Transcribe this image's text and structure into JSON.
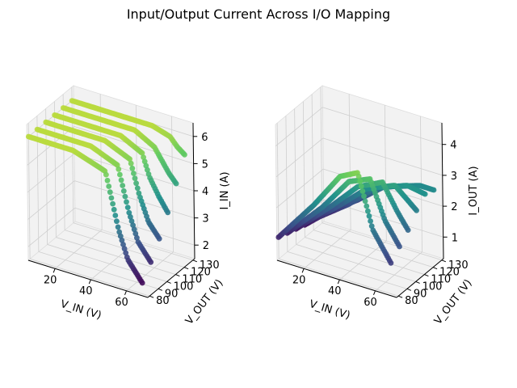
{
  "figure_title": "Input/Output Current Across I/O Mapping",
  "colors": {
    "pane": "#f2f2f2",
    "grid": "#cfcfcf",
    "colormap": [
      "#440154",
      "#3b528b",
      "#21918c",
      "#5ec962",
      "#fde725"
    ]
  },
  "chart_data": [
    {
      "type": "scatter",
      "projection": "3d",
      "grid": true,
      "x": {
        "label": "V_IN (V)",
        "range": [
          5,
          72
        ],
        "ticks": [
          20,
          40,
          60
        ]
      },
      "y": {
        "label": "V_OUT (V)",
        "range": [
          78,
          132
        ],
        "ticks": [
          80,
          90,
          100,
          110,
          120,
          130
        ]
      },
      "z": {
        "label": "I_IN (A)",
        "range": [
          1.5,
          6.5
        ],
        "ticks": [
          2,
          3,
          4,
          5,
          6
        ]
      },
      "colormap": "viridis",
      "series": [
        {
          "v_out": 80,
          "points": [
            [
              5,
              6.0
            ],
            [
              30,
              6.0
            ],
            [
              48,
              5.6
            ],
            [
              55,
              3.6
            ],
            [
              60,
              2.6
            ],
            [
              68,
              1.9
            ]
          ]
        },
        {
          "v_out": 90,
          "points": [
            [
              5,
              6.0
            ],
            [
              35,
              6.0
            ],
            [
              50,
              5.6
            ],
            [
              56,
              4.0
            ],
            [
              61,
              3.0
            ],
            [
              68,
              2.4
            ]
          ]
        },
        {
          "v_out": 100,
          "points": [
            [
              5,
              6.0
            ],
            [
              38,
              6.0
            ],
            [
              52,
              5.6
            ],
            [
              57,
              4.4
            ],
            [
              62,
              3.5
            ],
            [
              68,
              3.0
            ]
          ]
        },
        {
          "v_out": 110,
          "points": [
            [
              5,
              6.0
            ],
            [
              42,
              6.0
            ],
            [
              54,
              5.6
            ],
            [
              58,
              4.8
            ],
            [
              63,
              4.2
            ],
            [
              68,
              3.7
            ]
          ]
        },
        {
          "v_out": 120,
          "points": [
            [
              5,
              6.0
            ],
            [
              45,
              6.0
            ],
            [
              56,
              5.6
            ],
            [
              60,
              5.2
            ],
            [
              64,
              4.8
            ],
            [
              68,
              4.5
            ]
          ]
        },
        {
          "v_out": 130,
          "points": [
            [
              5,
              6.0
            ],
            [
              50,
              6.0
            ],
            [
              60,
              5.8
            ],
            [
              64,
              5.5
            ],
            [
              68,
              5.3
            ]
          ]
        }
      ]
    },
    {
      "type": "scatter",
      "projection": "3d",
      "grid": true,
      "x": {
        "label": "V_IN (V)",
        "range": [
          5,
          72
        ],
        "ticks": [
          20,
          40,
          60
        ]
      },
      "y": {
        "label": "V_OUT (V)",
        "range": [
          78,
          132
        ],
        "ticks": [
          80,
          90,
          100,
          110,
          120,
          130
        ]
      },
      "z": {
        "label": "I_OUT (A)",
        "range": [
          0.3,
          4.7
        ],
        "ticks": [
          1,
          2,
          3,
          4
        ]
      },
      "colormap": "viridis",
      "series": [
        {
          "v_out": 80,
          "points": [
            [
              5,
              1.0
            ],
            [
              25,
              2.4
            ],
            [
              40,
              3.6
            ],
            [
              50,
              3.9
            ],
            [
              58,
              2.2
            ],
            [
              68,
              1.3
            ]
          ]
        },
        {
          "v_out": 90,
          "points": [
            [
              5,
              0.9
            ],
            [
              25,
              2.1
            ],
            [
              40,
              3.2
            ],
            [
              52,
              3.5
            ],
            [
              60,
              2.3
            ],
            [
              68,
              1.6
            ]
          ]
        },
        {
          "v_out": 100,
          "points": [
            [
              5,
              0.8
            ],
            [
              25,
              1.9
            ],
            [
              40,
              2.8
            ],
            [
              54,
              3.2
            ],
            [
              62,
              2.4
            ],
            [
              68,
              1.9
            ]
          ]
        },
        {
          "v_out": 110,
          "points": [
            [
              5,
              0.7
            ],
            [
              25,
              1.7
            ],
            [
              40,
              2.5
            ],
            [
              56,
              2.9
            ],
            [
              64,
              2.5
            ],
            [
              68,
              2.3
            ]
          ]
        },
        {
          "v_out": 120,
          "points": [
            [
              5,
              0.65
            ],
            [
              25,
              1.5
            ],
            [
              40,
              2.3
            ],
            [
              58,
              2.7
            ],
            [
              68,
              2.6
            ]
          ]
        },
        {
          "v_out": 130,
          "points": [
            [
              5,
              0.6
            ],
            [
              25,
              1.4
            ],
            [
              40,
              2.1
            ],
            [
              60,
              2.5
            ],
            [
              68,
              2.5
            ]
          ]
        }
      ]
    }
  ]
}
